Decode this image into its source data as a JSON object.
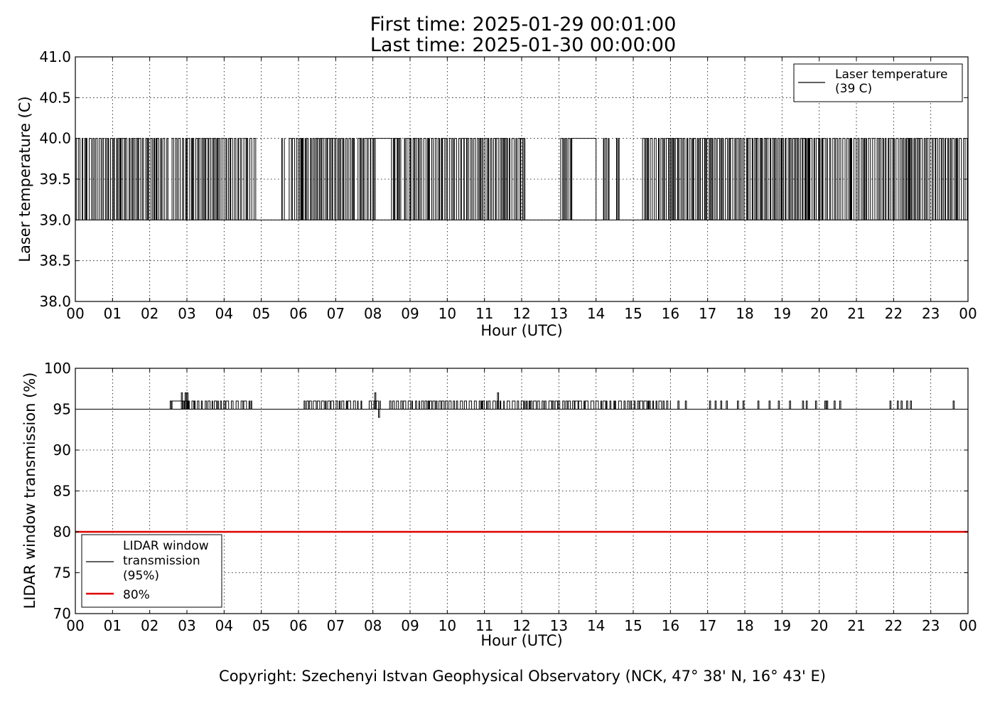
{
  "header": {
    "first_time": "First time: 2025-01-29 00:01:00",
    "last_time": "Last time: 2025-01-30 00:00:00"
  },
  "copyright": "Copyright: Szechenyi Istvan Geophysical Observatory (NCK, 47° 38' N, 16° 43' E)",
  "chart_data": [
    {
      "type": "line",
      "title": "",
      "xlabel": "Hour (UTC)",
      "ylabel": "Laser temperature (C)",
      "xlim": [
        0,
        24
      ],
      "ylim": [
        38.0,
        41.0
      ],
      "x_ticks": [
        "00",
        "01",
        "02",
        "03",
        "04",
        "05",
        "06",
        "07",
        "08",
        "09",
        "10",
        "11",
        "12",
        "13",
        "14",
        "15",
        "16",
        "17",
        "18",
        "19",
        "20",
        "21",
        "22",
        "23",
        "00"
      ],
      "y_ticks": [
        "38.0",
        "38.5",
        "39.0",
        "39.5",
        "40.0",
        "40.5",
        "41.0"
      ],
      "grid": true,
      "legend_position": "top-right",
      "series": [
        {
          "name": "Laser temperature\n(39 C)",
          "color": "#000000",
          "kind": "step-toggle",
          "low": 39.0,
          "high": 40.0,
          "base_value": 39.0,
          "toggle_intervals": [
            [
              0.0,
              2.5
            ],
            [
              2.6,
              4.85
            ],
            [
              5.55,
              5.62
            ],
            [
              5.75,
              7.5
            ],
            [
              7.6,
              8.1
            ],
            [
              8.55,
              8.75
            ],
            [
              8.85,
              12.1
            ],
            [
              13.05,
              13.35
            ],
            [
              14.2,
              14.35
            ],
            [
              14.55,
              14.62
            ],
            [
              15.25,
              24.0
            ]
          ],
          "flat_high_intervals": [
            [
              8.0,
              8.5
            ],
            [
              13.35,
              14.0
            ]
          ],
          "flat_low_intervals": [
            [
              4.85,
              5.55
            ],
            [
              12.1,
              13.0
            ],
            [
              14.7,
              15.2
            ]
          ]
        }
      ]
    },
    {
      "type": "line",
      "title": "",
      "xlabel": "Hour (UTC)",
      "ylabel": "LIDAR window transmission (%)",
      "xlim": [
        0,
        24
      ],
      "ylim": [
        70,
        100
      ],
      "x_ticks": [
        "00",
        "01",
        "02",
        "03",
        "04",
        "05",
        "06",
        "07",
        "08",
        "09",
        "10",
        "11",
        "12",
        "13",
        "14",
        "15",
        "16",
        "17",
        "18",
        "19",
        "20",
        "21",
        "22",
        "23",
        "00"
      ],
      "y_ticks": [
        "70",
        "75",
        "80",
        "85",
        "90",
        "95",
        "100"
      ],
      "grid": true,
      "legend_position": "lower-left",
      "series": [
        {
          "name": "LIDAR window\ntransmission\n(95%)",
          "color": "#000000",
          "kind": "step-toggle",
          "base_value": 95,
          "high": 96,
          "toggle_intervals": [
            [
              2.9,
              4.8
            ],
            [
              6.15,
              7.7
            ],
            [
              7.9,
              8.25
            ],
            [
              8.45,
              16.0
            ]
          ],
          "flat_high_intervals": [
            [
              2.6,
              2.9
            ]
          ],
          "spikes": [
            [
              2.55,
              96
            ],
            [
              2.85,
              97
            ],
            [
              2.95,
              97
            ],
            [
              3.0,
              97
            ],
            [
              8.05,
              97
            ],
            [
              8.15,
              94
            ],
            [
              11.35,
              97
            ],
            [
              16.2,
              96
            ],
            [
              16.4,
              96
            ],
            [
              17.05,
              96
            ],
            [
              17.2,
              96
            ],
            [
              17.35,
              96
            ],
            [
              17.5,
              96
            ],
            [
              17.8,
              96
            ],
            [
              17.95,
              96
            ],
            [
              18.35,
              96
            ],
            [
              18.65,
              96
            ],
            [
              18.9,
              96
            ],
            [
              19.2,
              96
            ],
            [
              19.55,
              96
            ],
            [
              19.65,
              96
            ],
            [
              19.9,
              96
            ],
            [
              20.15,
              96
            ],
            [
              20.2,
              96
            ],
            [
              20.4,
              96
            ],
            [
              20.55,
              96
            ],
            [
              21.9,
              96
            ],
            [
              22.1,
              96
            ],
            [
              22.2,
              96
            ],
            [
              22.35,
              96
            ],
            [
              22.45,
              96
            ],
            [
              23.6,
              96
            ]
          ]
        },
        {
          "name": "80%",
          "color": "#e00000",
          "kind": "constant",
          "value": 80
        }
      ]
    }
  ]
}
